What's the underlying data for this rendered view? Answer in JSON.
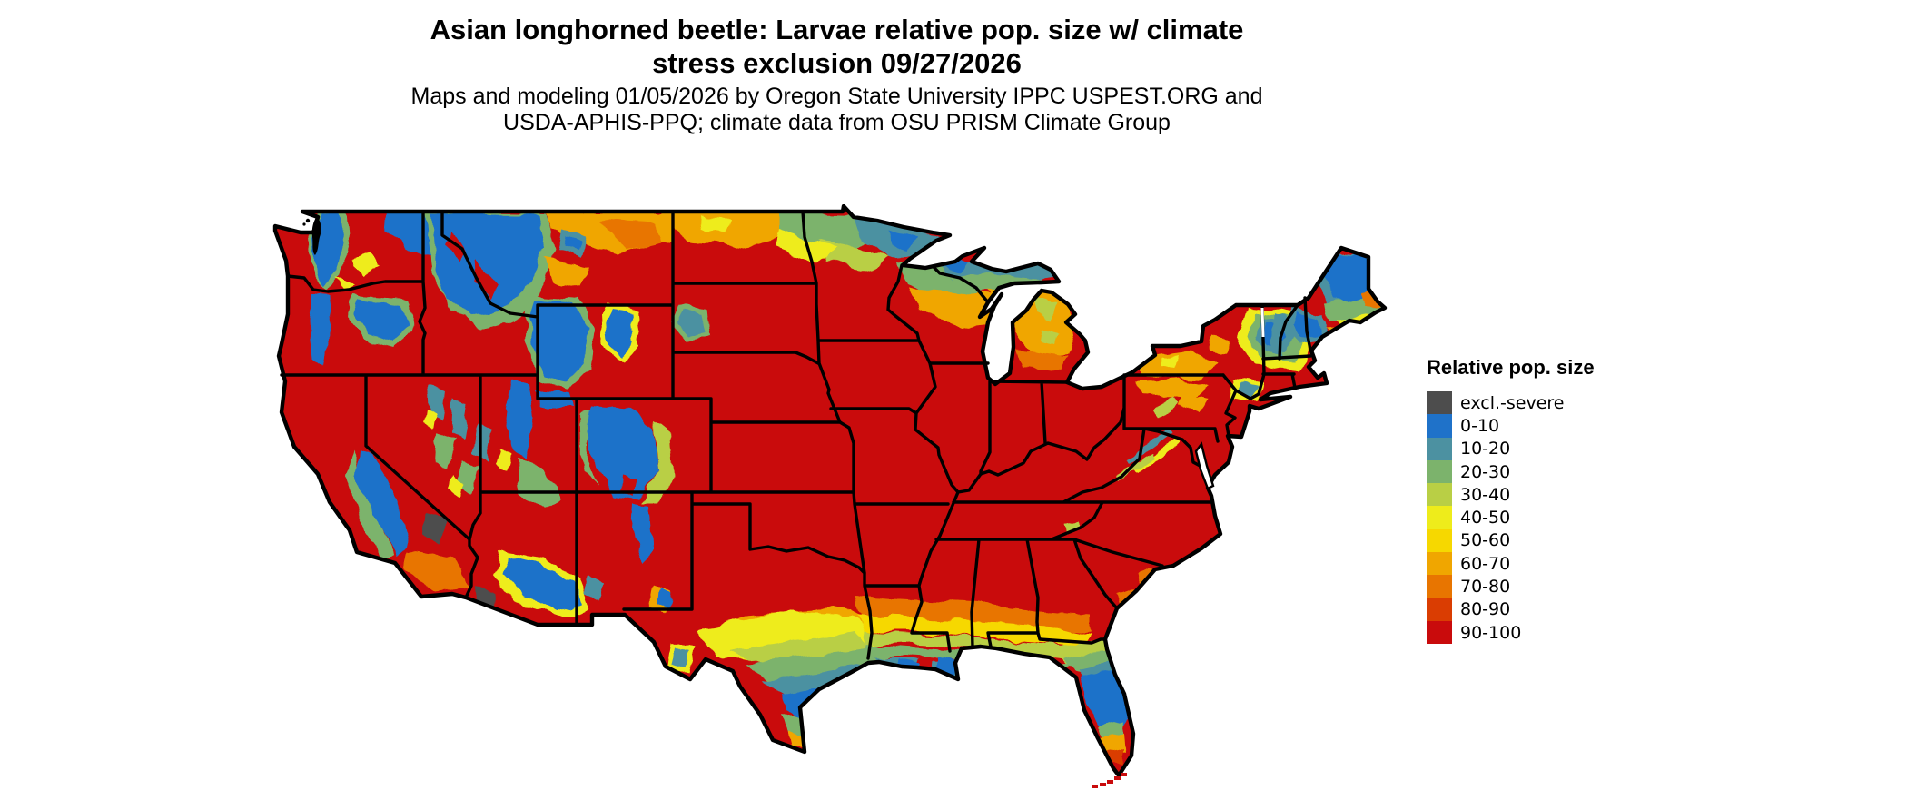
{
  "title": {
    "line1": "Asian longhorned beetle: Larvae relative pop. size w/ climate",
    "line2": "stress exclusion 09/27/2026"
  },
  "subtitle": {
    "line1": "Maps and modeling 01/05/2026 by Oregon State University IPPC USPEST.ORG and",
    "line2": "USDA-APHIS-PPQ; climate data from OSU PRISM Climate Group"
  },
  "legend": {
    "title": "Relative pop. size",
    "items": [
      {
        "label": "excl.-severe",
        "color": "#4d4d4d"
      },
      {
        "label": "0-10",
        "color": "#1f72c9"
      },
      {
        "label": "10-20",
        "color": "#4c91a1"
      },
      {
        "label": "20-30",
        "color": "#7cb36c"
      },
      {
        "label": "30-40",
        "color": "#b9cf45"
      },
      {
        "label": "40-50",
        "color": "#eeec1b"
      },
      {
        "label": "50-60",
        "color": "#f6d800"
      },
      {
        "label": "60-70",
        "color": "#f0a600"
      },
      {
        "label": "70-80",
        "color": "#e87500"
      },
      {
        "label": "80-90",
        "color": "#da3d02"
      },
      {
        "label": "90-100",
        "color": "#c90b0c"
      }
    ]
  },
  "map": {
    "area": "Contiguous United States",
    "background_color": "#ffffff",
    "border_color": "#000000",
    "dominant_class": "90-100",
    "dominant_color": "#c90b0c",
    "regional_pattern": [
      {
        "region": "Eastern and central US lowlands",
        "class": "90-100"
      },
      {
        "region": "Cascades, Sierra Nevada, N Idaho / W Montana, Yellowstone, Colorado Rockies, Wasatch, Adirondacks, White Mtns, N Maine",
        "class": "0-10 to 20-30"
      },
      {
        "region": "Northern border band ND-MN-WI-MI and N Lower Michigan",
        "class": "10-20 to 70-80 gradient"
      },
      {
        "region": "Gulf coastal plain TX-LA-MS-AL-FL",
        "class": "gradient 80-90 inland to 0-10 at coast"
      },
      {
        "region": "Central Florida and south Texas coast",
        "class": "0-10"
      },
      {
        "region": "South Florida tip",
        "class": "60-70 to 90-100"
      },
      {
        "region": "SW Arizona / SE California deserts",
        "class": "excl.-severe"
      }
    ]
  }
}
